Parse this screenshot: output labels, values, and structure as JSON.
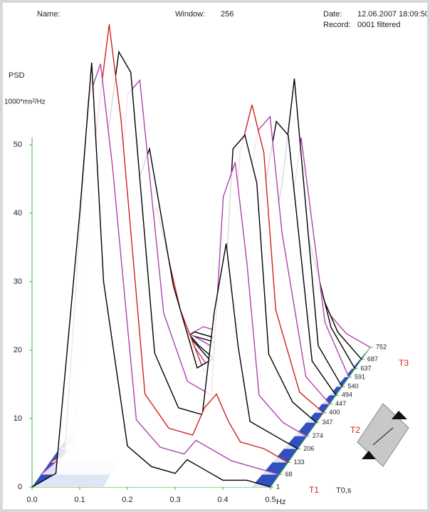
{
  "header": {
    "name_label": "Name:",
    "window_label": "Window:",
    "window": "256",
    "date_label": "Date:",
    "date": "12.06.2007 18:09:50",
    "record_label": "Record:",
    "record": "0001 filtered"
  },
  "chart_data": {
    "type": "waterfall",
    "y_label": "PSD",
    "y_unit": "1000*ms²/Hz",
    "x_label": "Hz",
    "z_label": "T0,s",
    "annotations": [
      "T1",
      "T2",
      "T3"
    ],
    "x": [
      0,
      0.05,
      0.1,
      0.125,
      0.15,
      0.2,
      0.25,
      0.3,
      0.325,
      0.35,
      0.375,
      0.4,
      0.45,
      0.5
    ],
    "xlim": [
      0,
      0.5
    ],
    "xticks": [
      {
        "value": 0,
        "label": "0.0"
      },
      0.1,
      0.2,
      0.3,
      0.4,
      0.5
    ],
    "ylim": [
      0,
      50
    ],
    "yticks": [
      0,
      10,
      20,
      30,
      40,
      50
    ],
    "zlim": [
      1,
      752
    ],
    "zticks": [
      1,
      68,
      133,
      206,
      274,
      347,
      400,
      447,
      494,
      540,
      591,
      637,
      687,
      752
    ],
    "colors": [
      "#000000",
      "#b040b0",
      "#d02020"
    ],
    "floor_color": "#3050c0",
    "axis_color": "#40b040",
    "spectra": [
      [
        0,
        2,
        40,
        62,
        30,
        6,
        3,
        2,
        4,
        3,
        2,
        1,
        1,
        0
      ],
      [
        0,
        3,
        55,
        60,
        45,
        8,
        4,
        3,
        5,
        4,
        3,
        2,
        1,
        0
      ],
      [
        0,
        2,
        50,
        64,
        50,
        10,
        5,
        4,
        8,
        10,
        6,
        3,
        2,
        0
      ],
      [
        0,
        2,
        45,
        58,
        55,
        14,
        6,
        5,
        20,
        30,
        15,
        4,
        2,
        0
      ],
      [
        0,
        1,
        30,
        50,
        52,
        18,
        8,
        6,
        35,
        40,
        25,
        6,
        2,
        0
      ],
      [
        0,
        1,
        20,
        35,
        40,
        20,
        8,
        10,
        40,
        42,
        35,
        10,
        3,
        0
      ],
      [
        0,
        1,
        15,
        25,
        30,
        15,
        6,
        12,
        38,
        45,
        38,
        15,
        3,
        0
      ],
      [
        0,
        1,
        10,
        18,
        20,
        10,
        5,
        10,
        30,
        40,
        42,
        25,
        4,
        0
      ],
      [
        0,
        1,
        8,
        12,
        14,
        8,
        4,
        8,
        22,
        30,
        40,
        38,
        5,
        0
      ],
      [
        0,
        1,
        5,
        8,
        10,
        6,
        3,
        6,
        15,
        20,
        30,
        45,
        6,
        0
      ],
      [
        0,
        1,
        4,
        6,
        7,
        5,
        3,
        4,
        10,
        14,
        22,
        35,
        8,
        0
      ],
      [
        0,
        1,
        3,
        4,
        5,
        4,
        2,
        3,
        6,
        10,
        15,
        20,
        6,
        0
      ],
      [
        0,
        0,
        2,
        3,
        4,
        3,
        2,
        2,
        4,
        6,
        8,
        12,
        4,
        0
      ],
      [
        0,
        0,
        1,
        2,
        3,
        2,
        1,
        1,
        2,
        3,
        4,
        6,
        2,
        0
      ]
    ]
  }
}
